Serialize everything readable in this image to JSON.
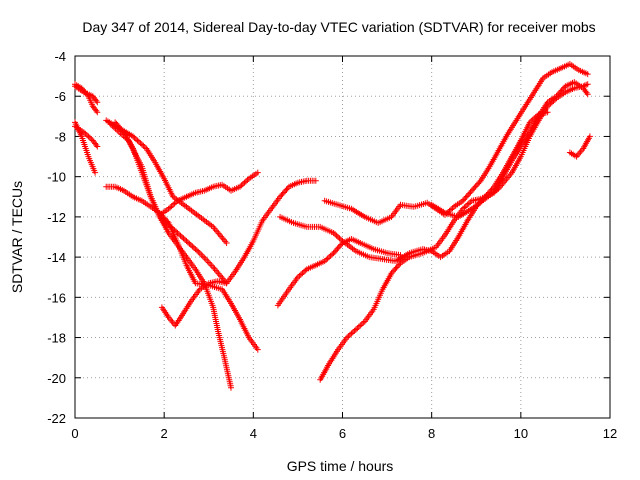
{
  "chart_data": {
    "type": "scatter",
    "title": "Day 347 of 2014, Sidereal Day-to-day VTEC variation (SDTVAR) for receiver mobs",
    "xlabel": "GPS time / hours",
    "ylabel": "SDTVAR / TECUs",
    "xlim": [
      0,
      12
    ],
    "ylim": [
      -22,
      -4
    ],
    "xticks": [
      0,
      2,
      4,
      6,
      8,
      10,
      12
    ],
    "yticks": [
      -22,
      -20,
      -18,
      -16,
      -14,
      -12,
      -10,
      -8,
      -6,
      -4
    ],
    "grid": true,
    "legend": "none",
    "marker": "+",
    "color": "#ff0000",
    "series": [
      {
        "points": [
          [
            0.0,
            -5.4
          ],
          [
            0.15,
            -5.6
          ],
          [
            0.3,
            -6.0
          ],
          [
            0.4,
            -6.5
          ],
          [
            0.5,
            -6.8
          ]
        ]
      },
      {
        "points": [
          [
            0.0,
            -7.3
          ],
          [
            0.15,
            -8.0
          ],
          [
            0.3,
            -9.0
          ],
          [
            0.45,
            -9.8
          ]
        ]
      },
      {
        "points": [
          [
            0.0,
            -7.5
          ],
          [
            0.2,
            -7.8
          ],
          [
            0.4,
            -8.2
          ],
          [
            0.5,
            -8.5
          ]
        ]
      },
      {
        "points": [
          [
            0.0,
            -5.5
          ],
          [
            0.2,
            -5.8
          ],
          [
            0.4,
            -6.0
          ],
          [
            0.5,
            -6.3
          ]
        ]
      },
      {
        "points": [
          [
            0.7,
            -7.2
          ],
          [
            1.0,
            -7.6
          ],
          [
            1.3,
            -8.0
          ],
          [
            1.6,
            -8.6
          ],
          [
            1.8,
            -9.3
          ],
          [
            2.0,
            -10.1
          ],
          [
            2.2,
            -11.0
          ],
          [
            2.5,
            -11.5
          ],
          [
            2.8,
            -12.0
          ],
          [
            3.1,
            -12.5
          ],
          [
            3.4,
            -13.3
          ]
        ]
      },
      {
        "points": [
          [
            0.8,
            -7.4
          ],
          [
            1.2,
            -8.2
          ],
          [
            1.5,
            -9.5
          ],
          [
            1.7,
            -11.0
          ],
          [
            1.9,
            -12.0
          ],
          [
            2.2,
            -12.6
          ],
          [
            2.5,
            -13.2
          ],
          [
            2.8,
            -13.8
          ],
          [
            3.1,
            -14.5
          ],
          [
            3.4,
            -15.3
          ]
        ]
      },
      {
        "points": [
          [
            0.9,
            -7.3
          ],
          [
            1.1,
            -7.8
          ],
          [
            1.3,
            -8.6
          ],
          [
            1.5,
            -9.8
          ],
          [
            1.7,
            -11.0
          ],
          [
            1.9,
            -12.0
          ],
          [
            2.1,
            -12.8
          ],
          [
            2.3,
            -13.4
          ],
          [
            2.5,
            -14.0
          ],
          [
            2.7,
            -14.6
          ],
          [
            2.9,
            -15.3
          ],
          [
            3.1,
            -16.5
          ],
          [
            3.2,
            -17.6
          ],
          [
            3.35,
            -19.0
          ],
          [
            3.5,
            -20.5
          ]
        ]
      },
      {
        "points": [
          [
            0.7,
            -10.5
          ],
          [
            0.9,
            -10.5
          ],
          [
            1.1,
            -10.7
          ],
          [
            1.3,
            -11.0
          ],
          [
            1.5,
            -11.2
          ],
          [
            1.7,
            -11.5
          ],
          [
            1.9,
            -11.8
          ],
          [
            2.1,
            -12.3
          ],
          [
            2.3,
            -13.3
          ],
          [
            2.5,
            -14.4
          ],
          [
            2.7,
            -15.3
          ],
          [
            3.0,
            -15.4
          ],
          [
            3.3,
            -15.6
          ],
          [
            3.5,
            -16.3
          ],
          [
            3.7,
            -17.1
          ],
          [
            3.9,
            -18.0
          ],
          [
            4.1,
            -18.6
          ]
        ]
      },
      {
        "points": [
          [
            1.9,
            -11.9
          ],
          [
            2.1,
            -11.6
          ],
          [
            2.3,
            -11.2
          ],
          [
            2.5,
            -11.0
          ],
          [
            2.7,
            -10.8
          ],
          [
            2.9,
            -10.7
          ],
          [
            3.1,
            -10.5
          ],
          [
            3.3,
            -10.4
          ],
          [
            3.5,
            -10.7
          ],
          [
            3.7,
            -10.5
          ],
          [
            3.9,
            -10.1
          ],
          [
            4.1,
            -9.8
          ]
        ]
      },
      {
        "points": [
          [
            1.95,
            -16.5
          ],
          [
            2.1,
            -17.0
          ],
          [
            2.25,
            -17.4
          ],
          [
            2.4,
            -16.9
          ],
          [
            2.6,
            -16.2
          ],
          [
            2.8,
            -15.6
          ],
          [
            3.0,
            -15.3
          ],
          [
            3.2,
            -15.2
          ],
          [
            3.4,
            -15.3
          ],
          [
            3.6,
            -14.7
          ],
          [
            3.8,
            -14.0
          ],
          [
            4.0,
            -13.2
          ],
          [
            4.2,
            -12.2
          ],
          [
            4.4,
            -11.6
          ],
          [
            4.6,
            -11.0
          ],
          [
            4.8,
            -10.5
          ],
          [
            5.0,
            -10.3
          ],
          [
            5.2,
            -10.2
          ],
          [
            5.4,
            -10.2
          ]
        ]
      },
      {
        "points": [
          [
            4.55,
            -16.4
          ],
          [
            4.8,
            -15.6
          ],
          [
            5.0,
            -15.0
          ],
          [
            5.2,
            -14.6
          ],
          [
            5.4,
            -14.4
          ],
          [
            5.6,
            -14.2
          ],
          [
            5.8,
            -13.8
          ],
          [
            6.0,
            -13.3
          ],
          [
            6.2,
            -13.1
          ],
          [
            6.4,
            -13.3
          ],
          [
            6.7,
            -13.6
          ],
          [
            7.0,
            -13.8
          ],
          [
            7.3,
            -13.9
          ]
        ]
      },
      {
        "points": [
          [
            4.6,
            -12.0
          ],
          [
            4.9,
            -12.3
          ],
          [
            5.2,
            -12.5
          ],
          [
            5.5,
            -12.5
          ],
          [
            5.8,
            -12.8
          ],
          [
            6.0,
            -13.2
          ],
          [
            6.3,
            -13.7
          ],
          [
            6.6,
            -14.0
          ],
          [
            6.9,
            -14.1
          ],
          [
            7.2,
            -14.2
          ],
          [
            7.5,
            -13.8
          ],
          [
            7.8,
            -13.6
          ],
          [
            8.0,
            -13.7
          ],
          [
            8.2,
            -14.0
          ],
          [
            8.4,
            -13.7
          ],
          [
            8.6,
            -13.0
          ],
          [
            8.8,
            -12.2
          ],
          [
            9.0,
            -11.5
          ],
          [
            9.2,
            -11.0
          ],
          [
            9.4,
            -10.5
          ],
          [
            9.6,
            -9.8
          ],
          [
            9.8,
            -9.0
          ],
          [
            10.0,
            -8.2
          ],
          [
            10.2,
            -7.3
          ],
          [
            10.4,
            -6.9
          ],
          [
            10.6,
            -6.8
          ]
        ]
      },
      {
        "points": [
          [
            5.5,
            -20.1
          ],
          [
            5.7,
            -19.3
          ],
          [
            5.9,
            -18.6
          ],
          [
            6.1,
            -18.0
          ],
          [
            6.3,
            -17.6
          ],
          [
            6.5,
            -17.2
          ],
          [
            6.7,
            -16.6
          ],
          [
            6.9,
            -15.6
          ],
          [
            7.1,
            -14.8
          ],
          [
            7.3,
            -14.3
          ],
          [
            7.5,
            -14.0
          ],
          [
            7.8,
            -13.8
          ],
          [
            8.1,
            -13.5
          ],
          [
            8.3,
            -12.9
          ],
          [
            8.5,
            -12.2
          ],
          [
            8.7,
            -11.6
          ],
          [
            8.9,
            -11.2
          ],
          [
            9.1,
            -11.1
          ],
          [
            9.4,
            -10.8
          ],
          [
            9.6,
            -10.0
          ],
          [
            9.8,
            -9.2
          ],
          [
            10.0,
            -8.5
          ],
          [
            10.2,
            -7.8
          ],
          [
            10.4,
            -7.0
          ],
          [
            10.6,
            -6.3
          ],
          [
            10.8,
            -6.0
          ],
          [
            11.0,
            -5.5
          ],
          [
            11.2,
            -5.3
          ],
          [
            11.4,
            -5.6
          ],
          [
            11.5,
            -5.9
          ]
        ]
      },
      {
        "points": [
          [
            5.6,
            -11.2
          ],
          [
            5.9,
            -11.4
          ],
          [
            6.2,
            -11.6
          ],
          [
            6.5,
            -12.0
          ],
          [
            6.8,
            -12.3
          ],
          [
            7.1,
            -12.0
          ],
          [
            7.3,
            -11.4
          ],
          [
            7.6,
            -11.5
          ],
          [
            7.9,
            -11.3
          ],
          [
            8.1,
            -11.6
          ],
          [
            8.3,
            -11.9
          ],
          [
            8.5,
            -11.5
          ],
          [
            8.7,
            -11.2
          ],
          [
            8.9,
            -10.7
          ],
          [
            9.1,
            -10.2
          ],
          [
            9.3,
            -9.5
          ],
          [
            9.5,
            -8.7
          ],
          [
            9.7,
            -7.9
          ],
          [
            9.9,
            -7.2
          ],
          [
            10.1,
            -6.5
          ],
          [
            10.3,
            -5.8
          ],
          [
            10.5,
            -5.1
          ],
          [
            10.7,
            -4.8
          ],
          [
            10.9,
            -4.6
          ],
          [
            11.1,
            -4.4
          ],
          [
            11.3,
            -4.7
          ],
          [
            11.5,
            -4.9
          ]
        ]
      },
      {
        "points": [
          [
            8.0,
            -11.4
          ],
          [
            8.3,
            -11.8
          ],
          [
            8.6,
            -12.0
          ],
          [
            8.9,
            -11.6
          ],
          [
            9.2,
            -11.1
          ],
          [
            9.5,
            -10.6
          ],
          [
            9.8,
            -9.8
          ],
          [
            10.0,
            -9.0
          ],
          [
            10.2,
            -8.0
          ],
          [
            10.4,
            -7.2
          ],
          [
            10.6,
            -6.5
          ],
          [
            10.8,
            -6.1
          ],
          [
            11.0,
            -5.8
          ],
          [
            11.2,
            -5.6
          ],
          [
            11.4,
            -5.5
          ],
          [
            11.5,
            -5.4
          ]
        ]
      },
      {
        "points": [
          [
            11.1,
            -8.8
          ],
          [
            11.25,
            -9.0
          ],
          [
            11.4,
            -8.6
          ],
          [
            11.55,
            -8.0
          ]
        ]
      }
    ]
  }
}
